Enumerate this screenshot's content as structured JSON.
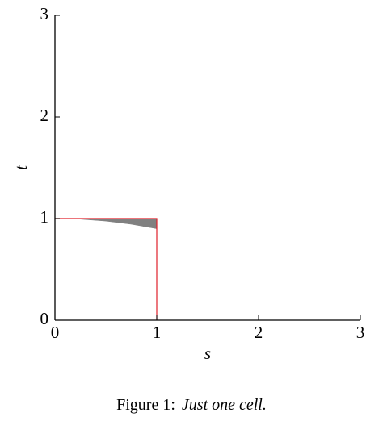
{
  "chart_data": {
    "type": "line",
    "xlabel": "s",
    "ylabel": "t",
    "xlim": [
      0,
      3
    ],
    "ylim": [
      0,
      3
    ],
    "xticks": [
      0,
      1,
      2,
      3
    ],
    "yticks": [
      0,
      1,
      2,
      3
    ],
    "series": [
      {
        "color": "#808080",
        "fill": true,
        "x": [
          0,
          0.25,
          0.5,
          0.75,
          1
        ],
        "values": [
          1,
          0.994,
          0.975,
          0.944,
          0.9
        ],
        "upper": [
          1,
          1,
          1,
          1,
          1
        ]
      },
      {
        "color": "#e0202a",
        "fill": false,
        "x": [
          0,
          1,
          1
        ],
        "values": [
          1,
          1,
          0
        ]
      }
    ],
    "caption": {
      "label": "Figure 1:",
      "text": "Just one cell."
    }
  }
}
